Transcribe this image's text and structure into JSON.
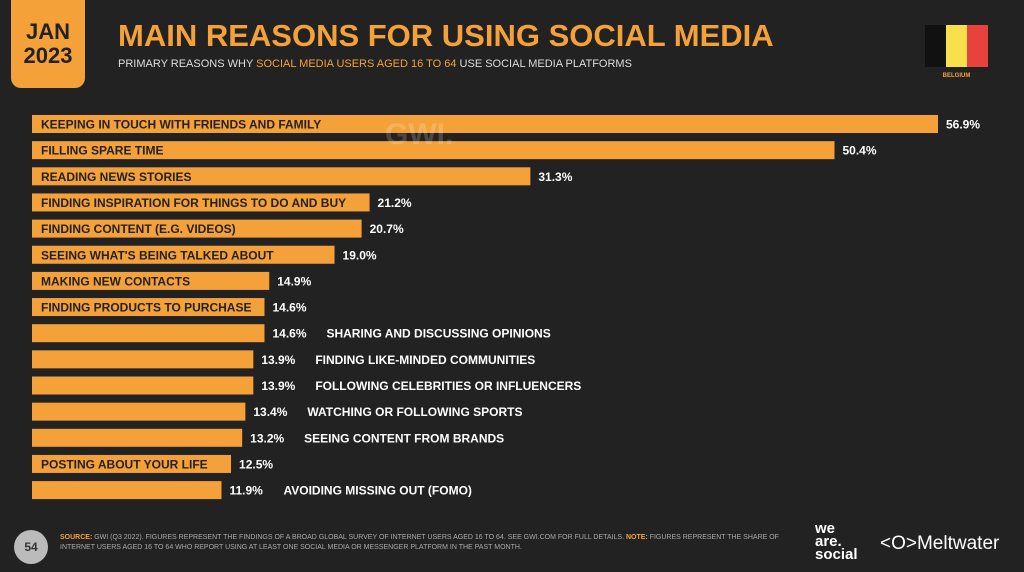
{
  "header": {
    "month": "JAN",
    "year": "2023",
    "title": "MAIN REASONS FOR USING SOCIAL MEDIA",
    "subtitle_pre": "PRIMARY REASONS WHY ",
    "subtitle_hl": "SOCIAL MEDIA USERS AGED 16 TO 64",
    "subtitle_post": " USE SOCIAL MEDIA PLATFORMS",
    "country": "BELGIUM",
    "watermark": "GWI."
  },
  "colors": {
    "accent": "#f4a13a",
    "background": "#222222",
    "flag": [
      "#111111",
      "#f7e04b",
      "#e8423e"
    ]
  },
  "chart_data": {
    "type": "bar",
    "orientation": "horizontal",
    "title": "MAIN REASONS FOR USING SOCIAL MEDIA",
    "xlim": [
      0,
      56.9
    ],
    "categories": [
      "KEEPING IN TOUCH WITH FRIENDS AND FAMILY",
      "FILLING SPARE TIME",
      "READING NEWS STORIES",
      "FINDING INSPIRATION FOR THINGS TO DO AND BUY",
      "FINDING CONTENT (E.G. VIDEOS)",
      "SEEING WHAT'S BEING TALKED ABOUT",
      "MAKING NEW CONTACTS",
      "FINDING PRODUCTS TO PURCHASE",
      "SHARING AND DISCUSSING OPINIONS",
      "FINDING LIKE-MINDED COMMUNITIES",
      "FOLLOWING CELEBRITIES OR INFLUENCERS",
      "WATCHING OR FOLLOWING SPORTS",
      "SEEING CONTENT FROM BRANDS",
      "POSTING ABOUT YOUR LIFE",
      "AVOIDING MISSING OUT (FOMO)"
    ],
    "values": [
      56.9,
      50.4,
      31.3,
      21.2,
      20.7,
      19.0,
      14.9,
      14.6,
      14.6,
      13.9,
      13.9,
      13.4,
      13.2,
      12.5,
      11.9
    ],
    "labels": [
      "56.9%",
      "50.4%",
      "31.3%",
      "21.2%",
      "20.7%",
      "19.0%",
      "14.9%",
      "14.6%",
      "14.6%",
      "13.9%",
      "13.9%",
      "13.4%",
      "13.2%",
      "12.5%",
      "11.9%"
    ],
    "label_inside": [
      true,
      true,
      true,
      true,
      true,
      true,
      true,
      true,
      false,
      false,
      false,
      false,
      false,
      true,
      false
    ]
  },
  "footer": {
    "page": "54",
    "source_label": "SOURCE:",
    "source_text": " GWI (Q3 2022). FIGURES REPRESENT THE FINDINGS OF A BROAD GLOBAL SURVEY OF INTERNET USERS AGED 16 TO 64. SEE GWI.COM FOR FULL DETAILS. ",
    "note_label": "NOTE:",
    "note_text": " FIGURES REPRESENT THE SHARE OF INTERNET USERS AGED 16 TO 64 WHO REPORT USING AT LEAST ONE SOCIAL MEDIA OR MESSENGER PLATFORM IN THE PAST MONTH.",
    "brand1": "we are. social",
    "brand2": "Meltwater"
  }
}
